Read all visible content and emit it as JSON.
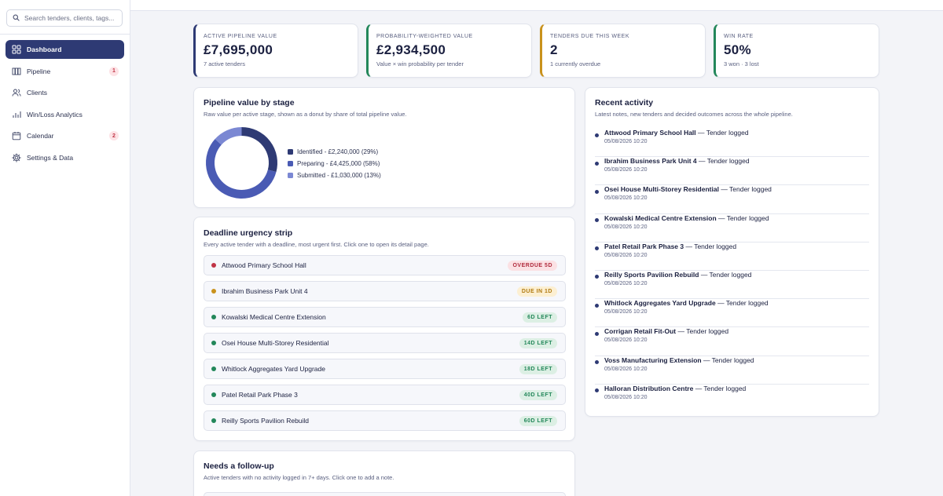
{
  "sidebar": {
    "search_placeholder": "Search tenders, clients, tags...",
    "items": [
      {
        "label": "Dashboard",
        "icon": "dashboard-grid-icon",
        "badge": ""
      },
      {
        "label": "Pipeline",
        "icon": "pipeline-columns-icon",
        "badge": "1"
      },
      {
        "label": "Clients",
        "icon": "users-icon",
        "badge": ""
      },
      {
        "label": "Win/Loss Analytics",
        "icon": "bar-chart-icon",
        "badge": ""
      },
      {
        "label": "Calendar",
        "icon": "calendar-icon",
        "badge": "2"
      },
      {
        "label": "Settings & Data",
        "icon": "gear-icon",
        "badge": ""
      }
    ]
  },
  "kpis": [
    {
      "label": "Active pipeline value",
      "value": "£7,695,000",
      "sub": "7 active tenders",
      "accent": "#2e3a74"
    },
    {
      "label": "Probability-weighted value",
      "value": "£2,934,500",
      "sub": "Value × win probability per tender",
      "accent": "#23875a"
    },
    {
      "label": "Tenders due this week",
      "value": "2",
      "sub": "1 currently overdue",
      "accent": "#c9921c"
    },
    {
      "label": "Win rate",
      "value": "50%",
      "sub": "3 won · 3 lost",
      "accent": "#23875a"
    }
  ],
  "pipeline_stage": {
    "title": "Pipeline value by stage",
    "subtitle": "Raw value per active stage, shown as a donut by share of total pipeline value.",
    "legend": [
      "Identified - £2,240,000 (29%)",
      "Preparing - £4,425,000 (58%)",
      "Submitted - £1,030,000 (13%)"
    ]
  },
  "chart_data": {
    "type": "pie",
    "categories": [
      "Identified",
      "Preparing",
      "Submitted"
    ],
    "values": [
      2240000,
      4425000,
      1030000
    ],
    "shares": [
      29,
      58,
      13
    ],
    "colors": [
      "#2e3a74",
      "#4a5bb4",
      "#7b88d3"
    ],
    "donut": true,
    "legend_position": "right"
  },
  "deadlines": {
    "title": "Deadline urgency strip",
    "subtitle": "Every active tender with a deadline, most urgent first. Click one to open its detail page.",
    "rows": [
      {
        "name": "Attwood Primary School Hall",
        "status": "OVERDUE 5D",
        "tone": "red"
      },
      {
        "name": "Ibrahim Business Park Unit 4",
        "status": "DUE IN 1D",
        "tone": "amber"
      },
      {
        "name": "Kowalski Medical Centre Extension",
        "status": "6D LEFT",
        "tone": "green"
      },
      {
        "name": "Osei House Multi-Storey Residential",
        "status": "14D LEFT",
        "tone": "green"
      },
      {
        "name": "Whitlock Aggregates Yard Upgrade",
        "status": "18D LEFT",
        "tone": "green"
      },
      {
        "name": "Patel Retail Park Phase 3",
        "status": "40D LEFT",
        "tone": "green"
      },
      {
        "name": "Reilly Sports Pavilion Rebuild",
        "status": "60D LEFT",
        "tone": "green"
      }
    ]
  },
  "activity": {
    "title": "Recent activity",
    "subtitle": "Latest notes, new tenders and decided outcomes across the whole pipeline.",
    "items": [
      {
        "name": "Attwood Primary School Hall",
        "event": " — Tender logged",
        "time": "05/08/2026 10:20"
      },
      {
        "name": "Ibrahim Business Park Unit 4",
        "event": " — Tender logged",
        "time": "05/08/2026 10:20"
      },
      {
        "name": "Osei House Multi-Storey Residential",
        "event": " — Tender logged",
        "time": "05/08/2026 10:20"
      },
      {
        "name": "Kowalski Medical Centre Extension",
        "event": " — Tender logged",
        "time": "05/08/2026 10:20"
      },
      {
        "name": "Patel Retail Park Phase 3",
        "event": " — Tender logged",
        "time": "05/08/2026 10:20"
      },
      {
        "name": "Reilly Sports Pavilion Rebuild",
        "event": " — Tender logged",
        "time": "05/08/2026 10:20"
      },
      {
        "name": "Whitlock Aggregates Yard Upgrade",
        "event": " — Tender logged",
        "time": "05/08/2026 10:20"
      },
      {
        "name": "Corrigan Retail Fit-Out",
        "event": " — Tender logged",
        "time": "05/08/2026 10:20"
      },
      {
        "name": "Voss Manufacturing Extension",
        "event": " — Tender logged",
        "time": "05/08/2026 10:20"
      },
      {
        "name": "Halloran Distribution Centre",
        "event": " — Tender logged",
        "time": "05/08/2026 10:20"
      }
    ]
  },
  "followup": {
    "title": "Needs a follow-up",
    "subtitle": "Active tenders with no activity logged in 7+ days. Click one to add a note."
  },
  "tones": {
    "red": {
      "dot": "#c03446",
      "bg": "#fbe1e4",
      "fg": "#b02b3d"
    },
    "amber": {
      "dot": "#c9921c",
      "bg": "#fcefd2",
      "fg": "#b07a10"
    },
    "green": {
      "dot": "#23875a",
      "bg": "#dcefe4",
      "fg": "#23875a"
    }
  }
}
